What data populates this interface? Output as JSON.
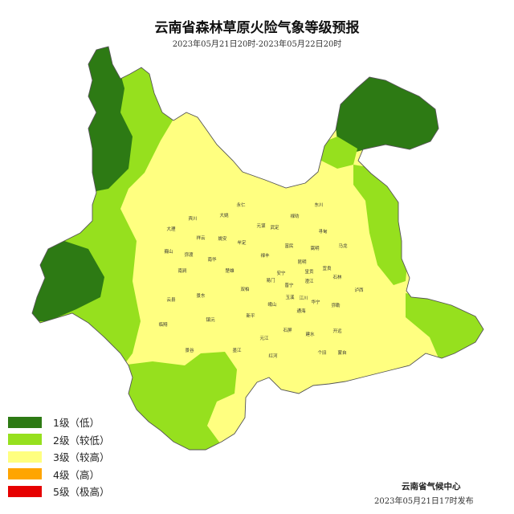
{
  "header": {
    "title": "云南省森林草原火险气象等级预报",
    "subtitle": "2023年05月21日20时-2023年05月22日20时"
  },
  "colors": {
    "level1": "#2d7a14",
    "level2": "#96e01e",
    "level3": "#ffff80",
    "level4": "#ffa500",
    "level5": "#e60000",
    "border": "#6b6b40"
  },
  "legend": [
    {
      "label": "1级（低）",
      "color": "#2d7a14"
    },
    {
      "label": "2级（较低）",
      "color": "#96e01e"
    },
    {
      "label": "3级（较高）",
      "color": "#ffff80"
    },
    {
      "label": "4级（高）",
      "color": "#ffa500"
    },
    {
      "label": "5级（极高）",
      "color": "#e60000"
    }
  ],
  "map": {
    "county_labels": [
      "永仁",
      "东川",
      "大姚",
      "禄劝",
      "宾川",
      "元谋",
      "武定",
      "大理",
      "祥云",
      "姚安",
      "牟定",
      "寻甸",
      "马龙",
      "巍山",
      "弥渡",
      "禄丰",
      "富民",
      "嵩明",
      "南华",
      "南涧",
      "昆明",
      "楚雄",
      "安宁",
      "呈贡",
      "宜良",
      "石林",
      "易门",
      "晋宁",
      "澄江",
      "双柏",
      "景东",
      "玉溪",
      "江川",
      "华宁",
      "云县",
      "峨山",
      "泸西",
      "弥勒",
      "新平",
      "通海",
      "镇沅",
      "临翔",
      "石屏",
      "建水",
      "开远",
      "元江",
      "景谷",
      "墨江",
      "个旧",
      "蒙自",
      "红河"
    ]
  },
  "footer": {
    "issuer": "云南省气候中心",
    "issued": "2023年05月21日17时发布"
  }
}
